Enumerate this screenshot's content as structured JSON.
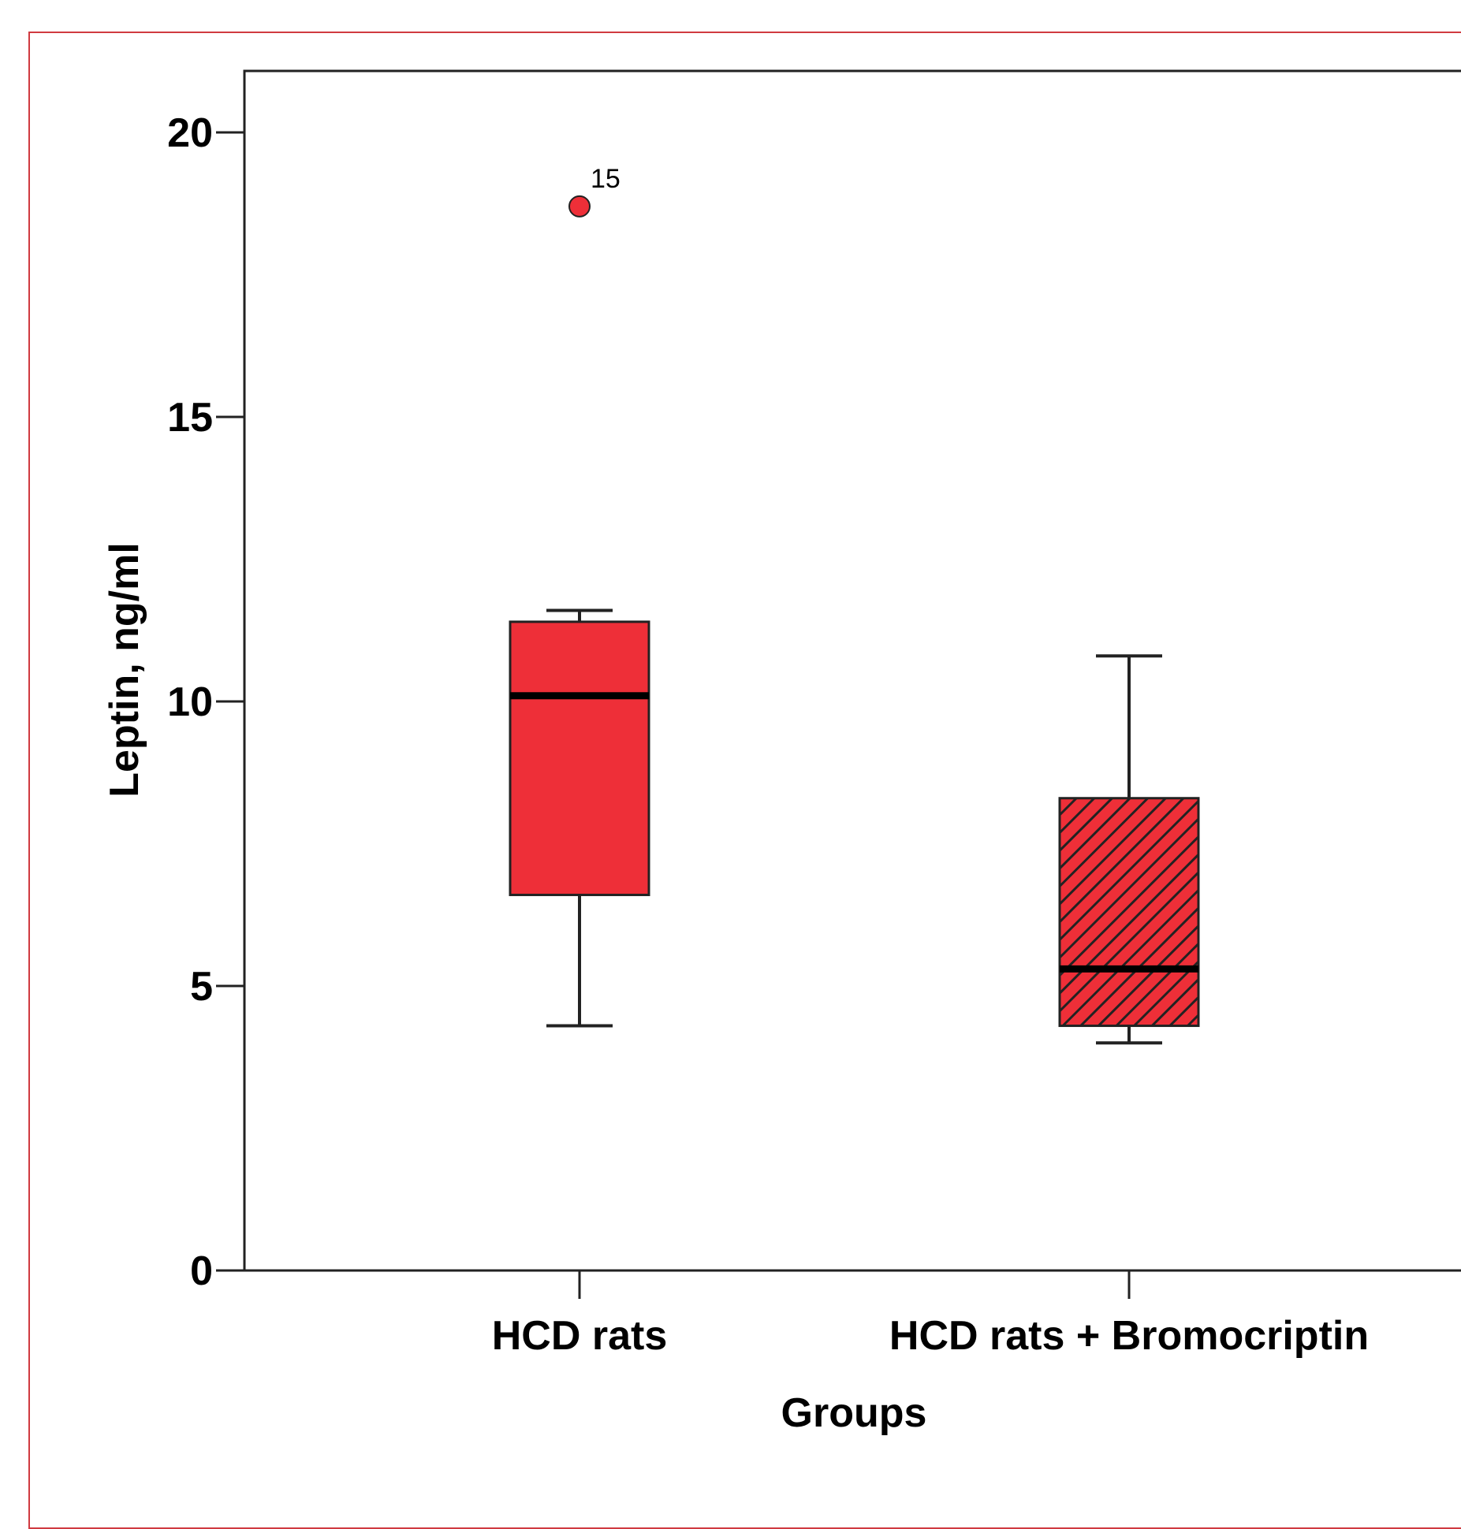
{
  "colors": {
    "box_fill": "#ee2f38",
    "box_stroke": "#222222",
    "median": "#000000",
    "outlier": "#ee2f38",
    "frame": "#d03a40",
    "axis": "#222222"
  },
  "chart_data": {
    "type": "box",
    "xlabel": "Groups",
    "ylabel": "Leptin, ng/ml",
    "ylim": [
      0,
      21
    ],
    "yticks": [
      0,
      5,
      10,
      15,
      20
    ],
    "yticks_labels": [
      "0",
      "5",
      "10",
      "15",
      "20"
    ],
    "grid": false,
    "categories": [
      "HCD rats",
      "HCD rats + Bromocriptin"
    ],
    "boxes": [
      {
        "category": "HCD rats",
        "whisker_low": 4.3,
        "q1": 6.6,
        "median": 10.1,
        "q3": 11.4,
        "whisker_high": 11.6,
        "fill_pattern": "solid",
        "outliers": [
          {
            "value": 18.7,
            "label": "15"
          }
        ]
      },
      {
        "category": "HCD rats + Bromocriptin",
        "whisker_low": 4.0,
        "q1": 4.3,
        "median": 5.3,
        "q3": 8.3,
        "whisker_high": 10.8,
        "fill_pattern": "hatched",
        "outliers": []
      }
    ]
  }
}
